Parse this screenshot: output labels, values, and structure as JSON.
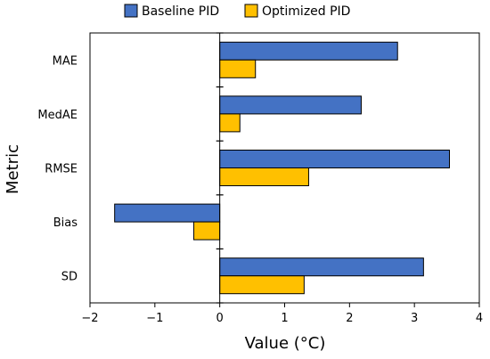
{
  "chart_data": {
    "type": "bar",
    "orientation": "horizontal",
    "categories": [
      "MAE",
      "MedAE",
      "RMSE",
      "Bias",
      "SD"
    ],
    "series": [
      {
        "name": "Baseline PID",
        "color": "#4472c4",
        "values": [
          2.74,
          2.18,
          3.54,
          -1.62,
          3.14
        ]
      },
      {
        "name": "Optimized PID",
        "color": "#ffc000",
        "values": [
          0.55,
          0.31,
          1.37,
          -0.4,
          1.3
        ]
      }
    ],
    "xlabel": "Value (°C)",
    "ylabel": "Metric",
    "xlim": [
      -2,
      4
    ],
    "xticks": [
      -2,
      -1,
      0,
      1,
      2,
      3,
      4
    ],
    "xtick_labels": [
      "−2",
      "−1",
      "0",
      "1",
      "2",
      "3",
      "4"
    ],
    "zero_line": true,
    "grid": false,
    "legend_position": "top-center"
  }
}
